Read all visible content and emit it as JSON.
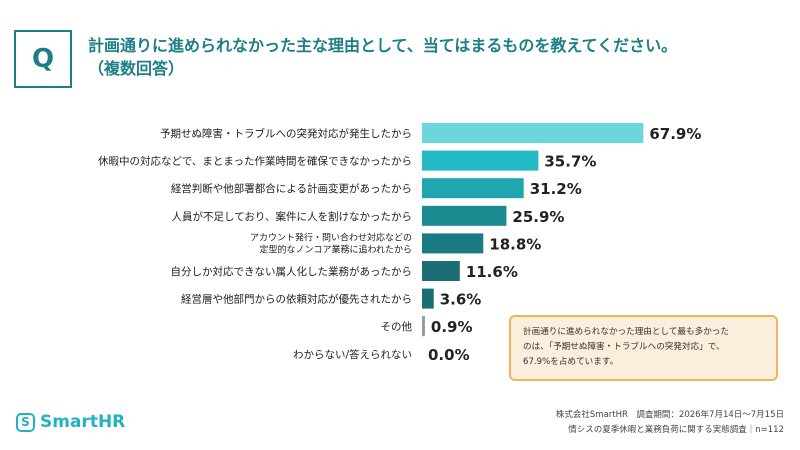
{
  "header": {
    "q_label": "Q",
    "title_line1": "計画通りに進められなかった主な理由として、当てはまるものを教えてください。",
    "title_line2": "（複数回答）"
  },
  "chart_data": {
    "type": "bar",
    "orientation": "horizontal",
    "title": "",
    "categories": [
      [
        "予期せぬ障害・トラブルへの突発対応が発生したから"
      ],
      [
        "休暇中の対応などで、まとまった作業時間を確保できなかったから"
      ],
      [
        "経営判断や他部署都合による計画変更があったから"
      ],
      [
        "人員が不足しており、案件に人を割けなかったから"
      ],
      [
        "アカウント発行・問い合わせ対応などの",
        "定型的なノンコア業務に追われたから"
      ],
      [
        "自分しか対応できない属人化した業務があったから"
      ],
      [
        "経営層や他部門からの依頼対応が優先されたから"
      ],
      [
        "その他"
      ],
      [
        "わからない/答えられない"
      ]
    ],
    "values": [
      67.9,
      35.7,
      31.2,
      25.9,
      18.8,
      11.6,
      3.6,
      0.9,
      0.0
    ],
    "value_labels": [
      "67.9%",
      "35.7%",
      "31.2%",
      "25.9%",
      "18.8%",
      "11.6%",
      "3.6%",
      "0.9%",
      "0.0%"
    ],
    "bar_colors": [
      "#6dd6dd",
      "#22b9c4",
      "#1fa6b0",
      "#1b8a91",
      "#1a7b82",
      "#1b6e74",
      "#1b6e74",
      "#999999",
      "#999999"
    ],
    "xlim": [
      0,
      100
    ],
    "grid": false,
    "legend": "none"
  },
  "callout": {
    "line1": "計画通りに進められなかった理由として最も多かった",
    "line2": "のは、「予期せぬ障害・トラブルへの突発対応」で、",
    "line3": "67.9%を占めています。"
  },
  "logo": {
    "mark": "S",
    "name": "SmartHR",
    "color": "#21b3be"
  },
  "footer": {
    "line1": "株式会社SmartHR　調査期間：2026年7月14日〜7月15日",
    "line2": "情シスの夏季休暇と業務負荷に関する実態調査｜n=112"
  },
  "colors": {
    "accent": "#1d7f86",
    "callout_border": "#f1b45b",
    "callout_bg": "#fbeedc"
  }
}
